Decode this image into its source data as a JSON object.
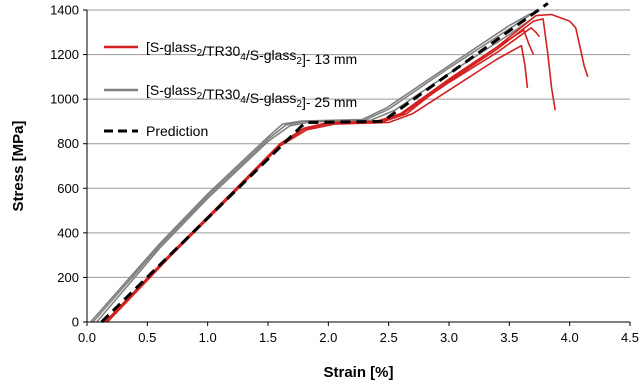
{
  "chart_data": {
    "type": "line",
    "title": "",
    "xlabel": "Strain [%]",
    "ylabel": "Stress [MPa]",
    "xlim": [
      0,
      4.5
    ],
    "ylim": [
      0,
      1400
    ],
    "x_ticks": [
      "0.0",
      "0.5",
      "1.0",
      "1.5",
      "2.0",
      "2.5",
      "3.0",
      "3.5",
      "4.0",
      "4.5"
    ],
    "y_ticks": [
      "0",
      "200",
      "400",
      "600",
      "800",
      "1000",
      "1200",
      "1400"
    ],
    "grid": "horizontal",
    "legend_position": "top-left",
    "legend": [
      {
        "parts": [
          [
            "[S-glass",
            ""
          ],
          [
            "2",
            "sub"
          ],
          [
            "/TR30",
            ""
          ],
          [
            "4",
            "sub"
          ],
          [
            "/S-glass",
            ""
          ],
          [
            "2",
            "sub"
          ],
          [
            "]- 13 mm",
            ""
          ]
        ],
        "color": "#d42020",
        "style": "solid"
      },
      {
        "parts": [
          [
            "[S-glass",
            ""
          ],
          [
            "2",
            "sub"
          ],
          [
            "/TR30",
            ""
          ],
          [
            "4",
            "sub"
          ],
          [
            "/S-glass",
            ""
          ],
          [
            "2",
            "sub"
          ],
          [
            "]- 25 mm",
            ""
          ]
        ],
        "color": "#808080",
        "style": "solid"
      },
      {
        "parts": [
          [
            "Prediction",
            ""
          ]
        ],
        "color": "#000000",
        "style": "dashed"
      }
    ],
    "series": [
      {
        "group": "25 mm",
        "color": "#808080",
        "points": [
          [
            0.05,
            0
          ],
          [
            0.6,
            340
          ],
          [
            1.0,
            565
          ],
          [
            1.5,
            820
          ],
          [
            1.65,
            885
          ],
          [
            1.8,
            900
          ],
          [
            2.3,
            905
          ],
          [
            2.5,
            955
          ],
          [
            3.0,
            1140
          ],
          [
            3.5,
            1315
          ],
          [
            3.72,
            1395
          ]
        ]
      },
      {
        "group": "25 mm",
        "color": "#808080",
        "points": [
          [
            0.08,
            0
          ],
          [
            0.6,
            330
          ],
          [
            1.0,
            555
          ],
          [
            1.5,
            810
          ],
          [
            1.68,
            880
          ],
          [
            1.85,
            898
          ],
          [
            2.35,
            905
          ],
          [
            2.55,
            950
          ],
          [
            3.0,
            1115
          ],
          [
            3.5,
            1290
          ],
          [
            3.7,
            1365
          ]
        ]
      },
      {
        "group": "25 mm",
        "color": "#808080",
        "points": [
          [
            0.03,
            0
          ],
          [
            0.6,
            350
          ],
          [
            1.0,
            575
          ],
          [
            1.5,
            830
          ],
          [
            1.62,
            888
          ],
          [
            1.78,
            902
          ],
          [
            2.28,
            908
          ],
          [
            2.48,
            960
          ],
          [
            3.0,
            1150
          ],
          [
            3.5,
            1330
          ],
          [
            3.68,
            1385
          ]
        ]
      },
      {
        "group": "13 mm",
        "color": "#d42020",
        "points": [
          [
            0.15,
            0
          ],
          [
            0.7,
            310
          ],
          [
            1.2,
            580
          ],
          [
            1.6,
            800
          ],
          [
            1.8,
            870
          ],
          [
            2.0,
            895
          ],
          [
            2.4,
            900
          ],
          [
            2.6,
            935
          ],
          [
            3.0,
            1090
          ],
          [
            3.4,
            1235
          ],
          [
            3.72,
            1375
          ],
          [
            3.85,
            1380
          ],
          [
            3.9,
            1370
          ],
          [
            3.95,
            1360
          ],
          [
            4.0,
            1350
          ],
          [
            4.05,
            1320
          ],
          [
            4.1,
            1200
          ],
          [
            4.12,
            1150
          ],
          [
            4.15,
            1100
          ]
        ]
      },
      {
        "group": "13 mm",
        "color": "#d42020",
        "points": [
          [
            0.16,
            0
          ],
          [
            0.7,
            305
          ],
          [
            1.2,
            575
          ],
          [
            1.6,
            795
          ],
          [
            1.8,
            865
          ],
          [
            2.0,
            892
          ],
          [
            2.4,
            897
          ],
          [
            2.6,
            930
          ],
          [
            3.0,
            1080
          ],
          [
            3.4,
            1225
          ],
          [
            3.7,
            1350
          ],
          [
            3.78,
            1360
          ],
          [
            3.82,
            1200
          ],
          [
            3.85,
            1050
          ],
          [
            3.88,
            950
          ]
        ]
      },
      {
        "group": "13 mm",
        "color": "#d42020",
        "points": [
          [
            0.17,
            0
          ],
          [
            0.7,
            300
          ],
          [
            1.2,
            570
          ],
          [
            1.6,
            790
          ],
          [
            1.82,
            862
          ],
          [
            2.05,
            888
          ],
          [
            2.5,
            895
          ],
          [
            2.7,
            935
          ],
          [
            3.0,
            1040
          ],
          [
            3.4,
            1180
          ],
          [
            3.6,
            1240
          ],
          [
            3.63,
            1150
          ],
          [
            3.65,
            1050
          ]
        ]
      },
      {
        "group": "13 mm",
        "color": "#d42020",
        "points": [
          [
            0.15,
            0
          ],
          [
            0.7,
            308
          ],
          [
            1.2,
            578
          ],
          [
            1.6,
            798
          ],
          [
            1.8,
            868
          ],
          [
            2.0,
            893
          ],
          [
            2.45,
            898
          ],
          [
            2.65,
            935
          ],
          [
            3.0,
            1085
          ],
          [
            3.4,
            1235
          ],
          [
            3.62,
            1310
          ],
          [
            3.66,
            1250
          ],
          [
            3.7,
            1200
          ]
        ]
      },
      {
        "group": "13 mm",
        "color": "#d42020",
        "points": [
          [
            0.16,
            0
          ],
          [
            0.7,
            303
          ],
          [
            1.2,
            573
          ],
          [
            1.6,
            793
          ],
          [
            1.8,
            866
          ],
          [
            2.0,
            890
          ],
          [
            2.4,
            896
          ],
          [
            2.6,
            928
          ],
          [
            3.0,
            1075
          ],
          [
            3.4,
            1210
          ],
          [
            3.68,
            1320
          ],
          [
            3.72,
            1300
          ],
          [
            3.75,
            1280
          ]
        ]
      },
      {
        "group": "Prediction",
        "color": "#000000",
        "dashed": true,
        "points": [
          [
            0.12,
            0
          ],
          [
            1.78,
            880
          ],
          [
            1.82,
            895
          ],
          [
            2.45,
            900
          ],
          [
            3.82,
            1430
          ]
        ]
      }
    ]
  }
}
